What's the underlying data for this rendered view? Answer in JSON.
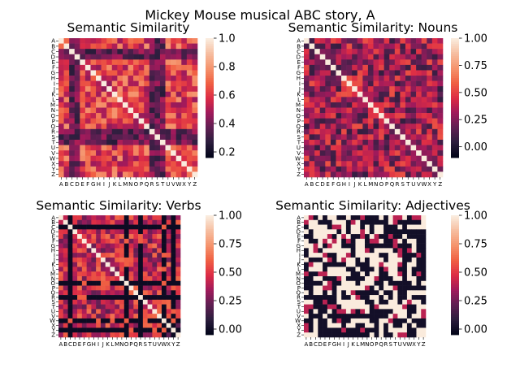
{
  "figure": {
    "suptitle": "Mickey Mouse musical ABC story, A"
  },
  "colormap": {
    "name": "rocket",
    "stops": [
      "#03051a",
      "#2d1e3e",
      "#611f53",
      "#a11a5b",
      "#dd2c45",
      "#f06043",
      "#f5936c",
      "#f6bd9f",
      "#faebdd"
    ]
  },
  "chart_data": [
    {
      "type": "heatmap",
      "title": "Semantic Similarity",
      "row_labels": [
        "A",
        "B",
        "C",
        "D",
        "E",
        "F",
        "G",
        "H",
        "I",
        "J",
        "K",
        "L",
        "M",
        "N",
        "O",
        "P",
        "Q",
        "R",
        "S",
        "T",
        "U",
        "V",
        "W",
        "X",
        "Y",
        "Z"
      ],
      "col_labels": [
        "A",
        "B",
        "C",
        "D",
        "E",
        "F",
        "G",
        "H",
        "I",
        "J",
        "K",
        "L",
        "M",
        "N",
        "O",
        "P",
        "Q",
        "R",
        "S",
        "T",
        "U",
        "V",
        "W",
        "X",
        "Y",
        "Z"
      ],
      "diagonal_value": 1.0,
      "vmin": 0.16,
      "vmax": 1.0,
      "colorbar_ticks": [
        "1.0",
        "0.8",
        "0.6",
        "0.4",
        "0.2"
      ],
      "colorbar_tick_values": [
        1.0,
        0.8,
        0.6,
        0.4,
        0.2
      ],
      "value_profile": {
        "typical_range": [
          0.45,
          0.8
        ],
        "low_rows": [
          "C",
          "D",
          "R",
          "S",
          "T"
        ]
      }
    },
    {
      "type": "heatmap",
      "title": "Semantic Similarity: Nouns",
      "row_labels": [
        "A",
        "B",
        "C",
        "D",
        "E",
        "F",
        "G",
        "H",
        "I",
        "J",
        "K",
        "L",
        "M",
        "N",
        "O",
        "P",
        "Q",
        "R",
        "S",
        "T",
        "U",
        "V",
        "W",
        "X",
        "Y",
        "Z"
      ],
      "col_labels": [
        "A",
        "B",
        "C",
        "D",
        "E",
        "F",
        "G",
        "H",
        "I",
        "J",
        "K",
        "L",
        "M",
        "N",
        "O",
        "P",
        "Q",
        "R",
        "S",
        "T",
        "U",
        "V",
        "W",
        "X",
        "Y",
        "Z"
      ],
      "diagonal_value": 1.0,
      "vmin": -0.1,
      "vmax": 1.0,
      "colorbar_ticks": [
        "1.00",
        "0.75",
        "0.50",
        "0.25",
        "0.00"
      ],
      "colorbar_tick_values": [
        1.0,
        0.75,
        0.5,
        0.25,
        0.0
      ],
      "value_profile": {
        "typical_range": [
          0.05,
          0.6
        ]
      }
    },
    {
      "type": "heatmap",
      "title": "Semantic Similarity: Verbs",
      "row_labels": [
        "A",
        "B",
        "C",
        "D",
        "E",
        "F",
        "G",
        "H",
        "I",
        "J",
        "K",
        "L",
        "M",
        "N",
        "O",
        "P",
        "Q",
        "R",
        "S",
        "T",
        "U",
        "V",
        "W",
        "X",
        "Y",
        "Z"
      ],
      "col_labels": [
        "A",
        "B",
        "C",
        "D",
        "E",
        "F",
        "G",
        "H",
        "I",
        "J",
        "K",
        "L",
        "M",
        "N",
        "O",
        "P",
        "Q",
        "R",
        "S",
        "T",
        "U",
        "V",
        "W",
        "X",
        "Y",
        "Z"
      ],
      "diagonal_value": 1.0,
      "vmin": -0.05,
      "vmax": 1.0,
      "colorbar_ticks": [
        "1.00",
        "0.75",
        "0.50",
        "0.25",
        "0.00"
      ],
      "colorbar_tick_values": [
        1.0,
        0.75,
        0.5,
        0.25,
        0.0
      ],
      "value_profile": {
        "typical_range": [
          0.2,
          0.65
        ],
        "zero_rows": [
          "C",
          "O",
          "R",
          "W",
          "Y"
        ]
      }
    },
    {
      "type": "heatmap",
      "title": "Semantic Similarity: Adjectives",
      "row_labels": [
        "A",
        "B",
        "C",
        "D",
        "E",
        "F",
        "G",
        "H",
        "I",
        "J",
        "K",
        "L",
        "M",
        "N",
        "O",
        "P",
        "Q",
        "R",
        "S",
        "T",
        "U",
        "V",
        "W",
        "X",
        "Y",
        "Z"
      ],
      "col_labels": [
        "A",
        "B",
        "C",
        "D",
        "E",
        "F",
        "G",
        "H",
        "I",
        "J",
        "K",
        "L",
        "M",
        "N",
        "O",
        "P",
        "Q",
        "R",
        "S",
        "T",
        "U",
        "V",
        "W",
        "X",
        "Y",
        "Z"
      ],
      "diagonal_value": 1.0,
      "vmin": -0.05,
      "vmax": 1.0,
      "colorbar_ticks": [
        "1.00",
        "0.75",
        "0.50",
        "0.25",
        "0.00"
      ],
      "colorbar_tick_values": [
        1.0,
        0.75,
        0.5,
        0.25,
        0.0
      ],
      "value_profile": {
        "typical_range": [
          0.0,
          1.0
        ],
        "pattern": "mostly 0 or 1"
      }
    }
  ]
}
